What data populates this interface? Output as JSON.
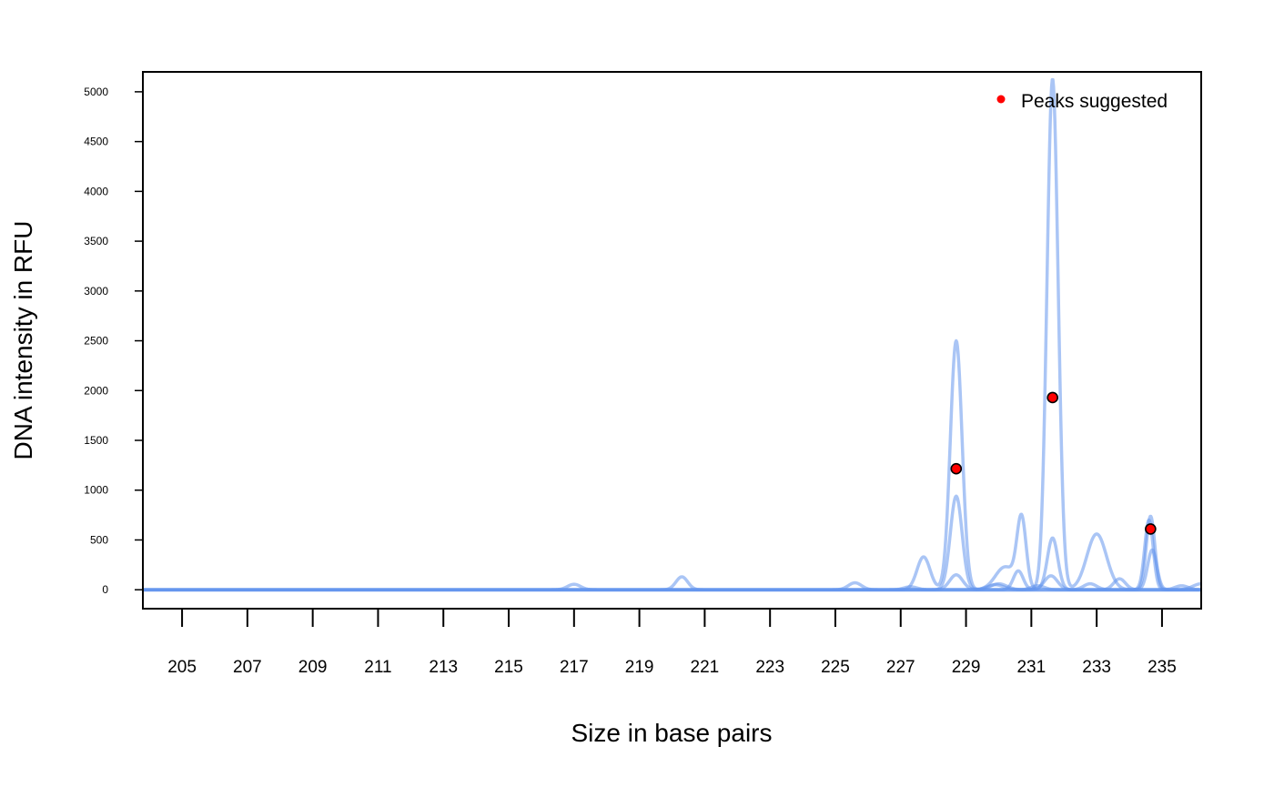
{
  "chart_data": {
    "type": "line",
    "title": "",
    "xlabel": "Size in base pairs",
    "ylabel": "DNA intensity in RFU",
    "xlim": [
      203.8,
      236.2
    ],
    "ylim": [
      -190,
      5200
    ],
    "xticks": [
      205,
      207,
      209,
      211,
      213,
      215,
      217,
      219,
      221,
      223,
      225,
      227,
      229,
      231,
      233,
      235
    ],
    "yticks": [
      0,
      500,
      1000,
      1500,
      2000,
      2500,
      3000,
      3500,
      4000,
      4500,
      5000
    ],
    "grid": false,
    "legend": {
      "position": "top-right",
      "entries": [
        {
          "label": "Peaks suggested",
          "color": "#ff0000",
          "marker": "point"
        }
      ]
    },
    "trace_color": "#6495ed",
    "series": [
      {
        "peaks": [
          [
            228.7,
            2500,
            0.18
          ],
          [
            231.65,
            5130,
            0.17
          ],
          [
            227.7,
            330,
            0.2
          ],
          [
            233.0,
            560,
            0.3
          ],
          [
            234.6,
            700,
            0.13
          ],
          [
            230.0,
            60,
            0.25
          ],
          [
            220.3,
            130,
            0.18
          ],
          [
            217.0,
            55,
            0.2
          ],
          [
            225.6,
            70,
            0.2
          ]
        ]
      },
      {
        "peaks": [
          [
            228.7,
            940,
            0.18
          ],
          [
            230.7,
            700,
            0.14
          ],
          [
            231.65,
            520,
            0.16
          ],
          [
            234.65,
            740,
            0.13
          ],
          [
            233.7,
            110,
            0.18
          ],
          [
            230.2,
            230,
            0.3
          ]
        ]
      },
      {
        "peaks": [
          [
            228.7,
            150,
            0.2
          ],
          [
            231.6,
            140,
            0.2
          ],
          [
            234.7,
            400,
            0.14
          ],
          [
            230.6,
            190,
            0.15
          ],
          [
            232.8,
            60,
            0.2
          ],
          [
            235.6,
            40,
            0.2
          ]
        ]
      },
      {
        "peaks": [
          [
            229.9,
            50,
            0.25
          ],
          [
            231.2,
            40,
            0.2
          ],
          [
            227.3,
            30,
            0.2
          ],
          [
            236.2,
            60,
            0.25
          ]
        ]
      }
    ],
    "peaks_suggested": [
      {
        "x": 228.7,
        "y": 1215
      },
      {
        "x": 231.65,
        "y": 1930
      },
      {
        "x": 234.65,
        "y": 610
      }
    ]
  }
}
